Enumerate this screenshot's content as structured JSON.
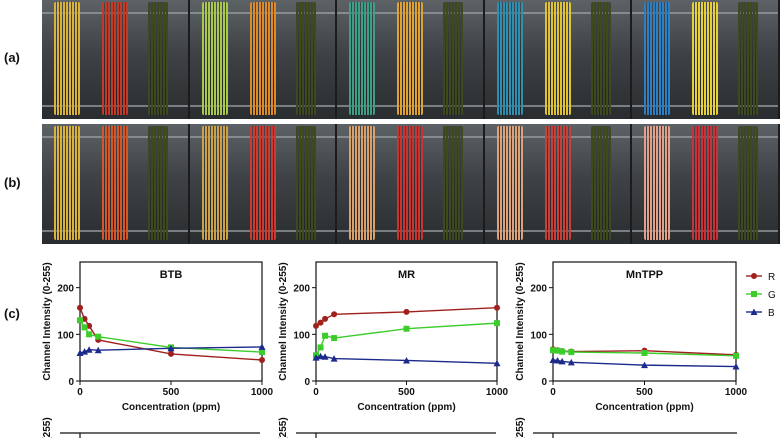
{
  "labels": {
    "a": "(a)",
    "b": "(b)",
    "c": "(c)"
  },
  "photo_rows": [
    {
      "tiles": [
        [
          "#d8b23a",
          "#c23a28",
          "#3c4a1e"
        ],
        [
          "#a9c84c",
          "#dd8a2a",
          "#3c4a1e"
        ],
        [
          "#3f9e86",
          "#e0a233",
          "#3c4a1e"
        ],
        [
          "#2e8fb0",
          "#e0c335",
          "#3c4a1e"
        ],
        [
          "#2f80c2",
          "#e6d03c",
          "#3c4a1e"
        ]
      ]
    },
    {
      "tiles": [
        [
          "#d8b23a",
          "#d2582a",
          "#3c4a1e"
        ],
        [
          "#c9a24a",
          "#cc3a30",
          "#3c4a1e"
        ],
        [
          "#d8a06a",
          "#c83432",
          "#3c4a1e"
        ],
        [
          "#dca27a",
          "#c8403a",
          "#3c4a1e"
        ],
        [
          "#e0a08a",
          "#c8323a",
          "#3c4a1e"
        ]
      ]
    }
  ],
  "chart_data": [
    {
      "type": "line",
      "title": "BTB",
      "xlabel": "Concentration (ppm)",
      "ylabel": "Channel Intensity (0-255)",
      "xticks": [
        0,
        500,
        1000
      ],
      "yticks": [
        0,
        100,
        200
      ],
      "xlim": [
        0,
        1000
      ],
      "ylim": [
        0,
        255
      ],
      "series": [
        {
          "name": "R",
          "color": "#a0201c",
          "marker": "circle",
          "x": [
            0,
            25,
            50,
            100,
            500,
            1000
          ],
          "y": [
            157,
            133,
            118,
            88,
            58,
            45
          ]
        },
        {
          "name": "G",
          "color": "#3ccc2c",
          "marker": "square",
          "x": [
            0,
            25,
            50,
            100,
            500,
            1000
          ],
          "y": [
            130,
            115,
            100,
            95,
            72,
            62
          ]
        },
        {
          "name": "B",
          "color": "#1c2a8c",
          "marker": "triangle",
          "x": [
            0,
            25,
            50,
            100,
            500,
            1000
          ],
          "y": [
            60,
            63,
            67,
            66,
            70,
            73
          ]
        }
      ]
    },
    {
      "type": "line",
      "title": "MR",
      "xlabel": "Concentration (ppm)",
      "ylabel": "Channel Intensity (0-255)",
      "xticks": [
        0,
        500,
        1000
      ],
      "yticks": [
        0,
        100,
        200
      ],
      "xlim": [
        0,
        1000
      ],
      "ylim": [
        0,
        255
      ],
      "series": [
        {
          "name": "R",
          "color": "#a0201c",
          "marker": "circle",
          "x": [
            0,
            25,
            50,
            100,
            500,
            1000
          ],
          "y": [
            118,
            125,
            133,
            143,
            148,
            157
          ]
        },
        {
          "name": "G",
          "color": "#3ccc2c",
          "marker": "square",
          "x": [
            0,
            25,
            50,
            100,
            500,
            1000
          ],
          "y": [
            55,
            72,
            97,
            92,
            112,
            124
          ]
        },
        {
          "name": "B",
          "color": "#1c2a8c",
          "marker": "triangle",
          "x": [
            0,
            25,
            50,
            100,
            500,
            1000
          ],
          "y": [
            50,
            53,
            52,
            48,
            44,
            38
          ]
        }
      ]
    },
    {
      "type": "line",
      "title": "MnTPP",
      "xlabel": "Concentration (ppm)",
      "ylabel": "Channel Intensity (0-255)",
      "xticks": [
        0,
        500,
        1000
      ],
      "yticks": [
        0,
        100,
        200
      ],
      "xlim": [
        0,
        1000
      ],
      "ylim": [
        0,
        255
      ],
      "series": [
        {
          "name": "R",
          "color": "#a0201c",
          "marker": "circle",
          "x": [
            0,
            25,
            50,
            100,
            500,
            1000
          ],
          "y": [
            68,
            66,
            64,
            63,
            65,
            56
          ]
        },
        {
          "name": "G",
          "color": "#3ccc2c",
          "marker": "square",
          "x": [
            0,
            25,
            50,
            100,
            500,
            1000
          ],
          "y": [
            66,
            65,
            63,
            62,
            60,
            54
          ]
        },
        {
          "name": "B",
          "color": "#1c2a8c",
          "marker": "triangle",
          "x": [
            0,
            25,
            50,
            100,
            500,
            1000
          ],
          "y": [
            45,
            44,
            42,
            40,
            34,
            31
          ]
        }
      ]
    }
  ],
  "legend": [
    {
      "name": "R",
      "color": "#a0201c",
      "marker": "circle"
    },
    {
      "name": "G",
      "color": "#3ccc2c",
      "marker": "square"
    },
    {
      "name": "B",
      "color": "#1c2a8c",
      "marker": "triangle"
    }
  ],
  "lower_row": {
    "partial_ylabel": "(255)"
  }
}
